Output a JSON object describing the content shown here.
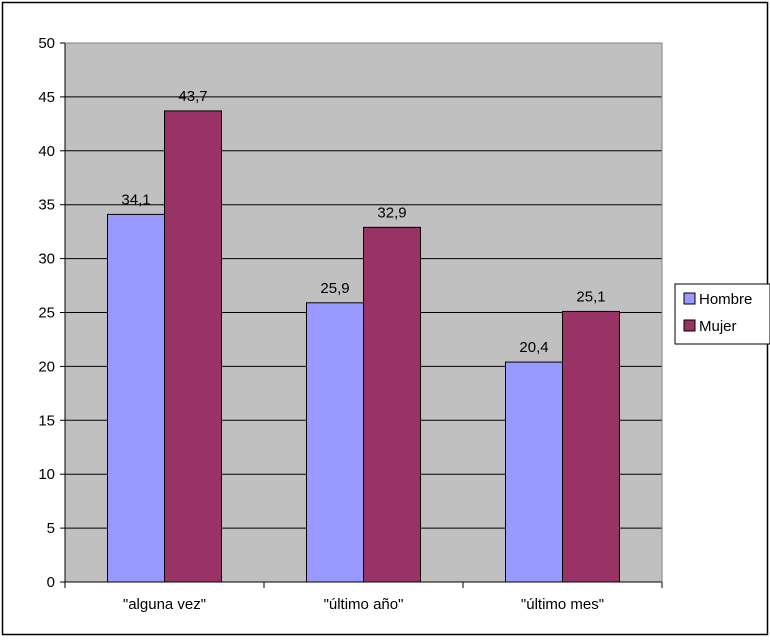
{
  "chart_data": {
    "type": "bar",
    "title": "",
    "xlabel": "",
    "ylabel": "",
    "categories": [
      "\"alguna vez\"",
      "\"último año\"",
      "\"último mes\""
    ],
    "series": [
      {
        "name": "Hombre",
        "values": [
          34.1,
          25.9,
          20.4
        ],
        "labels": [
          "34,1",
          "25,9",
          "20,4"
        ],
        "color": "#9999ff"
      },
      {
        "name": "Mujer",
        "values": [
          43.7,
          32.9,
          25.1
        ],
        "labels": [
          "43,7",
          "32,9",
          "25,1"
        ],
        "color": "#993366"
      }
    ],
    "ylim": [
      0,
      50
    ],
    "yticks": [
      0,
      5,
      10,
      15,
      20,
      25,
      30,
      35,
      40,
      45,
      50
    ],
    "grid": true,
    "plot_background": "#c0c0c0",
    "legend_position": "right"
  }
}
